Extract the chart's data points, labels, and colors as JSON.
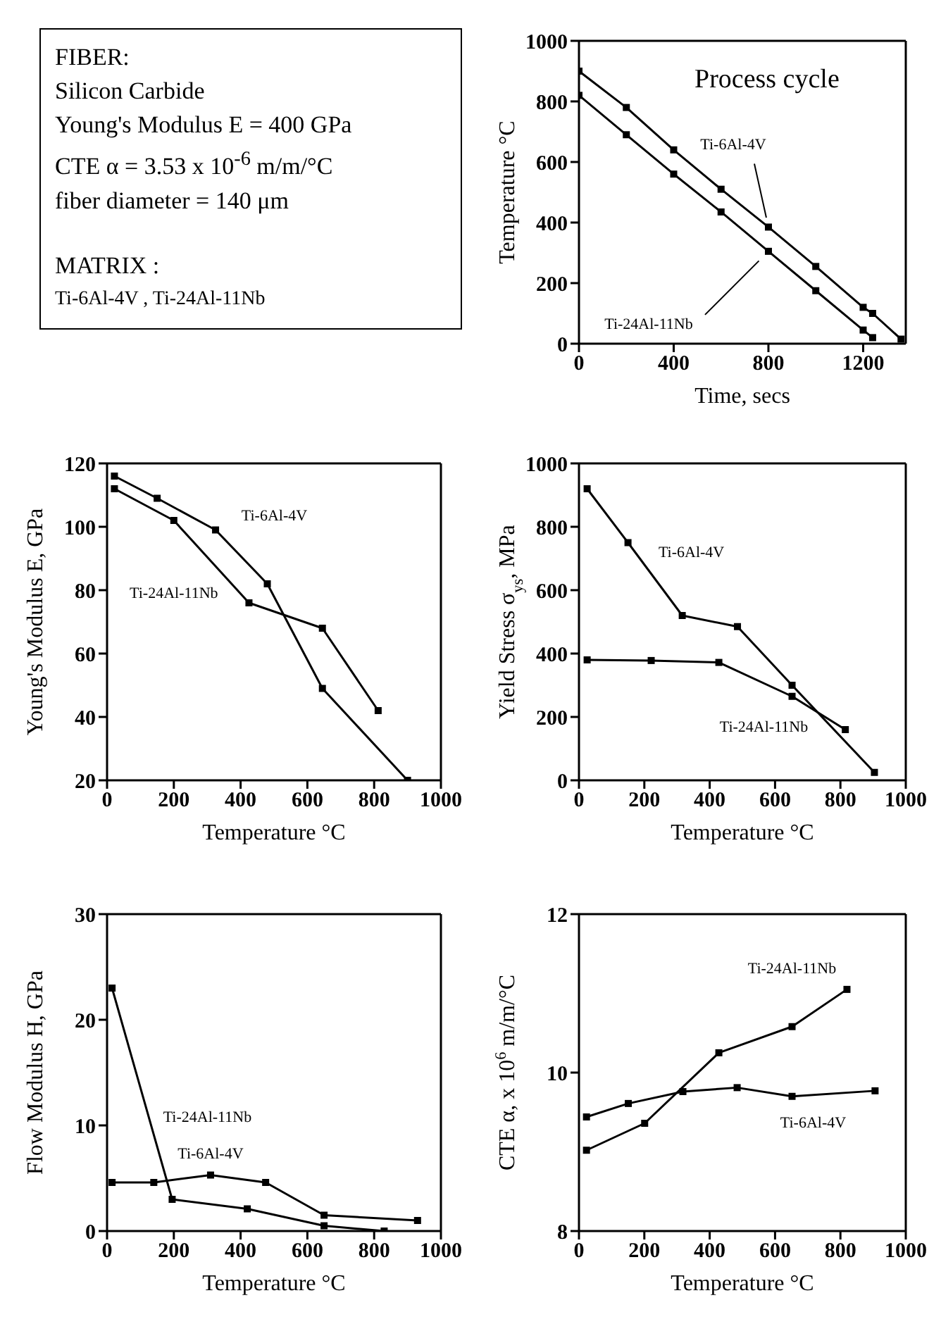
{
  "chart_data": [
    {
      "type": "other",
      "title": "FIBER:",
      "annotations": [
        "Silicon Carbide",
        "Young's Modulus  E = 400 GPa",
        "CTE α =  3.53 x 10$^{-6}$ m/m/°C",
        "fiber diameter = 140 μm",
        "MATRIX :",
        "Ti-6Al-4V  ,  Ti-24Al-11Nb"
      ]
    },
    {
      "type": "line",
      "title": "Process cycle",
      "xlabel": "Time, secs",
      "ylabel": "Temperature °C",
      "xlim": [
        0,
        1380
      ],
      "xticks": [
        0,
        400,
        800,
        1200
      ],
      "ylim": [
        0,
        1000
      ],
      "yticks": [
        0,
        200,
        400,
        600,
        800,
        1000
      ],
      "marker": "square",
      "series": [
        {
          "name": "Ti-6Al-4V",
          "color": "#000000",
          "x": [
            0,
            200,
            400,
            600,
            800,
            1000,
            1200,
            1240,
            1360
          ],
          "values": [
            900,
            780,
            640,
            510,
            385,
            255,
            120,
            100,
            15
          ]
        },
        {
          "name": "Ti-24Al-11Nb",
          "color": "#000000",
          "x": [
            0,
            200,
            400,
            600,
            800,
            1000,
            1200,
            1240
          ],
          "values": [
            820,
            690,
            560,
            435,
            305,
            175,
            45,
            20
          ]
        }
      ]
    },
    {
      "type": "line",
      "xlabel": "Temperature °C",
      "ylabel": "Young's Modulus E, GPa",
      "xlim": [
        0,
        1000
      ],
      "xticks": [
        0,
        200,
        400,
        600,
        800,
        1000
      ],
      "ylim": [
        20,
        120
      ],
      "yticks": [
        20,
        40,
        60,
        80,
        100,
        120
      ],
      "marker": "square",
      "series": [
        {
          "name": "Ti-6Al-4V",
          "color": "#000000",
          "x": [
            22,
            150,
            325,
            480,
            645,
            900
          ],
          "values": [
            116,
            109,
            99,
            82,
            49,
            20
          ]
        },
        {
          "name": "Ti-24Al-11Nb",
          "color": "#000000",
          "x": [
            22,
            200,
            425,
            645,
            812
          ],
          "values": [
            112,
            102,
            76,
            68,
            42
          ]
        }
      ]
    },
    {
      "type": "line",
      "xlabel": "Temperature °C",
      "ylabel": "Yield Stress σ$_{ys}$, MPa",
      "xlim": [
        0,
        1000
      ],
      "xticks": [
        0,
        200,
        400,
        600,
        800,
        1000
      ],
      "ylim": [
        0,
        1000
      ],
      "yticks": [
        0,
        200,
        400,
        600,
        800,
        1000
      ],
      "marker": "square",
      "series": [
        {
          "name": "Ti-6Al-4V",
          "color": "#000000",
          "x": [
            25,
            150,
            316,
            485,
            652,
            904
          ],
          "values": [
            920,
            750,
            520,
            485,
            300,
            25
          ]
        },
        {
          "name": "Ti-24Al-11Nb",
          "color": "#000000",
          "x": [
            25,
            221,
            428,
            652,
            815
          ],
          "values": [
            380,
            378,
            372,
            265,
            160
          ]
        }
      ]
    },
    {
      "type": "line",
      "xlabel": "Temperature °C",
      "ylabel": "Flow Modulus H, GPa",
      "xlim": [
        0,
        1000
      ],
      "xticks": [
        0,
        200,
        400,
        600,
        800,
        1000
      ],
      "ylim": [
        0,
        30
      ],
      "yticks": [
        0,
        10,
        20,
        30
      ],
      "marker": "square",
      "series": [
        {
          "name": "Ti-24Al-11Nb",
          "color": "#000000",
          "x": [
            15,
            195,
            420,
            650,
            830
          ],
          "values": [
            23,
            3,
            2.1,
            0.5,
            0
          ]
        },
        {
          "name": "Ti-6Al-4V",
          "color": "#000000",
          "x": [
            15,
            140,
            310,
            475,
            650,
            930
          ],
          "values": [
            4.6,
            4.6,
            5.3,
            4.6,
            1.5,
            1
          ]
        }
      ]
    },
    {
      "type": "line",
      "xlabel": "Temperature °C",
      "ylabel": "CTE α, x 10$^{6}$ m/m/°C",
      "xlim": [
        0,
        1000
      ],
      "xticks": [
        0,
        200,
        400,
        600,
        800,
        1000
      ],
      "ylim": [
        8,
        12
      ],
      "yticks": [
        8,
        10,
        12
      ],
      "marker": "square",
      "series": [
        {
          "name": "Ti-24Al-11Nb",
          "color": "#000000",
          "x": [
            23,
            201,
            428,
            652,
            820
          ],
          "values": [
            9.02,
            9.36,
            10.25,
            10.58,
            11.05
          ]
        },
        {
          "name": "Ti-6Al-4V",
          "color": "#000000",
          "x": [
            23,
            151,
            318,
            484,
            652,
            906
          ],
          "values": [
            9.44,
            9.61,
            9.76,
            9.81,
            9.7,
            9.77
          ]
        }
      ]
    }
  ]
}
